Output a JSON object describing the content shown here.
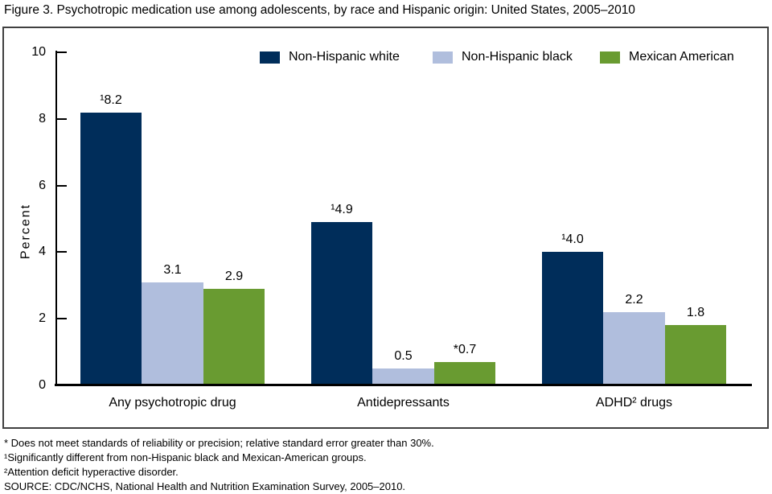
{
  "figure": {
    "title": "Figure 3. Psychotropic medication use among adolescents, by race and Hispanic origin: United States, 2005–2010"
  },
  "chart_data": {
    "type": "bar",
    "title": "Figure 3. Psychotropic medication use among adolescents, by race and Hispanic origin: United States, 2005–2010",
    "categories": [
      "Any psychotropic drug",
      "Antidepressants",
      "ADHD² drugs"
    ],
    "series": [
      {
        "name": "Non-Hispanic white",
        "color": "#002d5a",
        "values": [
          8.2,
          4.9,
          4.0
        ],
        "labels": [
          "¹8.2",
          "¹4.9",
          "¹4.0"
        ]
      },
      {
        "name": "Non-Hispanic black",
        "color": "#b0bedd",
        "values": [
          3.1,
          0.5,
          2.2
        ],
        "labels": [
          "3.1",
          "0.5",
          "2.2"
        ]
      },
      {
        "name": "Mexican American",
        "color": "#699b31",
        "values": [
          2.9,
          0.7,
          1.8
        ],
        "labels": [
          "2.9",
          "*0.7",
          "1.8"
        ]
      }
    ],
    "xlabel": "",
    "ylabel": "Percent",
    "ylim": [
      0,
      10
    ],
    "yticks": [
      0,
      2,
      4,
      6,
      8,
      10
    ],
    "grid": false,
    "legend_position": "top-inside",
    "axis_color": "#000000",
    "frame_color": "#404040"
  },
  "footnotes": [
    "* Does not meet standards of reliability or precision; relative standard error greater than 30%.",
    "¹Significantly different from non-Hispanic black and Mexican-American groups.",
    "²Attention deficit hyperactive disorder.",
    "SOURCE: CDC/NCHS, National Health and Nutrition Examination Survey, 2005–2010."
  ]
}
